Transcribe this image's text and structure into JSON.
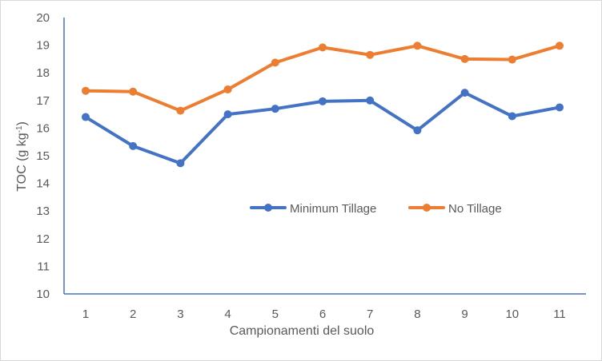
{
  "chart_data": {
    "type": "line",
    "title": "",
    "xlabel": "Campionamenti del suolo",
    "ylabel": "TOC (g kg-1)",
    "ylabel_parts": {
      "main": "TOC (g kg",
      "sup": "-1",
      "end": ")"
    },
    "categories": [
      "1",
      "2",
      "3",
      "4",
      "5",
      "6",
      "7",
      "8",
      "9",
      "10",
      "11"
    ],
    "ylim": [
      10,
      20
    ],
    "yticks": [
      "10",
      "11",
      "12",
      "13",
      "14",
      "15",
      "16",
      "17",
      "18",
      "19",
      "20"
    ],
    "grid": false,
    "legend_position": "center",
    "series": [
      {
        "name": "Minimum Tillage",
        "color": "#4472c4",
        "values": [
          16.4,
          15.35,
          14.73,
          16.5,
          16.7,
          16.97,
          17.0,
          15.92,
          17.28,
          16.43,
          16.75
        ]
      },
      {
        "name": "No Tillage",
        "color": "#ed7d31",
        "values": [
          17.35,
          17.32,
          16.63,
          17.4,
          18.37,
          18.92,
          18.65,
          18.98,
          18.5,
          18.48,
          18.98
        ]
      }
    ]
  }
}
